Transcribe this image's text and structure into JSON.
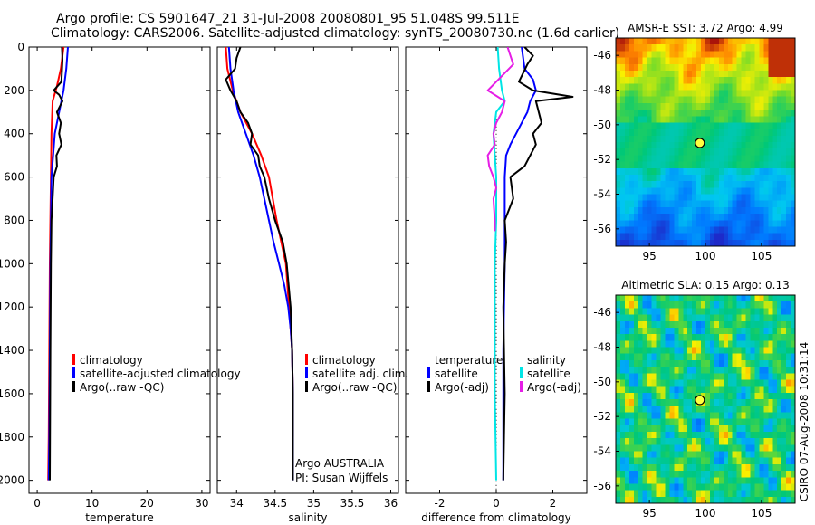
{
  "header": {
    "title_line1": "Argo profile: CS 5901647_21 31-Jul-2008 20080801_95 51.048S 99.511E",
    "title_line2": "Climatology: CARS2006. Satellite-adjusted climatology: synTS_20080730.nc (1.6d earlier)"
  },
  "footer": {
    "credit": "CSIRO 07-Aug-2008 10:31:14"
  },
  "colors": {
    "climatology": "#ff0000",
    "satellite": "#0000ff",
    "argo": "#000000",
    "sal_satellite": "#00e5e5",
    "sal_argo": "#e61ee6"
  },
  "chart_data": [
    {
      "type": "line",
      "xlabel": "temperature",
      "ylabel": "",
      "xlim": [
        -1.5,
        31.5
      ],
      "ylim": [
        2060,
        0
      ],
      "xticks": [
        0,
        10,
        20,
        30
      ],
      "yticks": [
        0,
        200,
        400,
        600,
        800,
        1000,
        1200,
        1400,
        1600,
        1800,
        2000
      ],
      "legend": [
        "climatology",
        "satellite-adjusted climatology",
        "Argo(..raw -QC)"
      ],
      "series": [
        {
          "name": "climatology",
          "color": "#ff0000",
          "x": [
            4.8,
            4.3,
            3.6,
            2.8,
            2.6,
            2.5,
            2.4,
            2.3,
            2.2,
            2.1,
            2.0
          ],
          "y": [
            0,
            100,
            180,
            250,
            400,
            600,
            800,
            1000,
            1400,
            1800,
            2000
          ]
        },
        {
          "name": "satellite-adjusted climatology",
          "color": "#0000ff",
          "x": [
            5.6,
            5.3,
            4.8,
            4.0,
            3.2,
            2.9,
            2.6,
            2.5,
            2.4,
            2.3,
            2.2,
            2.1
          ],
          "y": [
            0,
            100,
            200,
            300,
            400,
            500,
            600,
            800,
            1000,
            1400,
            1800,
            2000
          ]
        },
        {
          "name": "Argo(..raw -QC)",
          "color": "#000000",
          "x": [
            4.5,
            4.6,
            4.4,
            3.0,
            4.0,
            4.6,
            3.6,
            4.3,
            4.0,
            4.4,
            3.5,
            3.6,
            3.0,
            2.8,
            2.6,
            2.5,
            2.4,
            2.3
          ],
          "y": [
            0,
            60,
            160,
            200,
            220,
            250,
            300,
            350,
            400,
            450,
            500,
            550,
            600,
            700,
            800,
            1000,
            1400,
            2000
          ]
        }
      ]
    },
    {
      "type": "line",
      "xlabel": "salinity",
      "ylabel": "",
      "xlim": [
        33.75,
        36.1
      ],
      "ylim": [
        2060,
        0
      ],
      "xticks": [
        34,
        34.5,
        35,
        35.5,
        36
      ],
      "xticklabels": [
        "34",
        "34.5",
        "35",
        "35.5",
        "36"
      ],
      "legend": [
        "climatology",
        "satellite adj. clim.",
        "Argo(..raw -QC)"
      ],
      "annotations": [
        "Argo AUSTRALIA",
        "PI: Susan Wijffels"
      ],
      "series": [
        {
          "name": "climatology",
          "color": "#ff0000",
          "x": [
            33.86,
            33.88,
            33.95,
            34.05,
            34.2,
            34.32,
            34.42,
            34.52,
            34.58,
            34.64,
            34.68,
            34.72,
            34.73,
            34.73
          ],
          "y": [
            0,
            100,
            200,
            300,
            400,
            500,
            600,
            800,
            900,
            1000,
            1200,
            1400,
            1600,
            1800
          ]
        },
        {
          "name": "satellite adj. clim.",
          "color": "#0000ff",
          "x": [
            33.9,
            33.92,
            33.96,
            34.02,
            34.12,
            34.22,
            34.3,
            34.36,
            34.42,
            34.48,
            34.55,
            34.62,
            34.67,
            34.7,
            34.72,
            34.73,
            34.73
          ],
          "y": [
            0,
            100,
            200,
            300,
            400,
            500,
            600,
            700,
            800,
            900,
            1000,
            1100,
            1200,
            1300,
            1400,
            1600,
            2000
          ]
        },
        {
          "name": "Argo(..raw -QC)",
          "color": "#000000",
          "x": [
            34.05,
            34.0,
            33.98,
            33.86,
            33.92,
            34.0,
            34.05,
            34.15,
            34.2,
            34.18,
            34.28,
            34.3,
            34.36,
            34.42,
            34.5,
            34.6,
            34.65,
            34.7,
            34.72,
            34.73,
            34.73
          ],
          "y": [
            0,
            50,
            100,
            150,
            200,
            250,
            300,
            350,
            400,
            450,
            500,
            550,
            600,
            700,
            800,
            900,
            1000,
            1200,
            1400,
            1600,
            2000
          ]
        }
      ]
    },
    {
      "type": "line",
      "xlabel": "difference from climatology",
      "ylabel": "",
      "xlim": [
        -3.2,
        3.2
      ],
      "ylim": [
        2060,
        0
      ],
      "xticks": [
        -2,
        0,
        2
      ],
      "legend": [
        "temperature",
        "satellite",
        "Argo(-adj)",
        "salinity",
        "satellite",
        "Argo(-adj)"
      ],
      "series": [
        {
          "name": "temperature satellite",
          "color": "#0000ff",
          "x": [
            0.9,
            1.0,
            1.3,
            1.4,
            1.2,
            1.1,
            0.9,
            0.7,
            0.5,
            0.35,
            0.3,
            0.3,
            0.3,
            0.25,
            0.25
          ],
          "y": [
            0,
            100,
            150,
            200,
            250,
            300,
            350,
            400,
            450,
            500,
            600,
            800,
            1000,
            1400,
            2000
          ]
        },
        {
          "name": "temperature Argo(-adj)",
          "color": "#000000",
          "x": [
            1.0,
            1.3,
            1.1,
            0.8,
            1.3,
            2.7,
            1.4,
            1.5,
            1.6,
            1.3,
            1.4,
            1.2,
            1.0,
            0.5,
            0.6,
            0.3,
            0.35,
            0.3,
            0.25,
            0.3,
            0.25
          ],
          "y": [
            0,
            40,
            80,
            160,
            200,
            230,
            250,
            300,
            350,
            400,
            450,
            500,
            550,
            600,
            700,
            800,
            900,
            1000,
            1200,
            1600,
            2000
          ]
        },
        {
          "name": "salinity satellite",
          "color": "#00e5e5",
          "x": [
            0.05,
            0.1,
            0.2,
            0.3,
            0.0,
            -0.1,
            -0.05,
            0.0,
            0.0,
            -0.05,
            -0.05,
            -0.05,
            -0.05,
            0.0
          ],
          "y": [
            0,
            100,
            200,
            250,
            300,
            400,
            500,
            600,
            800,
            1000,
            1200,
            1400,
            1600,
            2000
          ]
        },
        {
          "name": "salinity Argo(-adj)",
          "color": "#e61ee6",
          "x": [
            0.4,
            0.6,
            0.3,
            -0.3,
            0.3,
            0.2,
            0.0,
            -0.1,
            -0.05,
            -0.3,
            -0.25,
            -0.1,
            0.0,
            -0.1,
            -0.05,
            -0.05
          ],
          "y": [
            0,
            80,
            120,
            200,
            250,
            300,
            350,
            400,
            450,
            500,
            550,
            600,
            650,
            700,
            800,
            850
          ]
        }
      ]
    },
    {
      "type": "heatmap",
      "title": "AMSR-E SST: 3.72 Argo: 4.99",
      "xlim": [
        92,
        108
      ],
      "ylim": [
        -57,
        -45
      ],
      "xticks": [
        95,
        100,
        105
      ],
      "yticks": [
        -46,
        -48,
        -50,
        -52,
        -54,
        -56
      ],
      "marker": {
        "lon": 99.5,
        "lat": -51.05
      }
    },
    {
      "type": "heatmap",
      "title": "Altimetric SLA: 0.15 Argo: 0.13",
      "xlim": [
        92,
        108
      ],
      "ylim": [
        -57,
        -45
      ],
      "xticks": [
        95,
        100,
        105
      ],
      "yticks": [
        -46,
        -48,
        -50,
        -52,
        -54,
        -56
      ],
      "marker": {
        "lon": 99.5,
        "lat": -51.05
      }
    }
  ]
}
